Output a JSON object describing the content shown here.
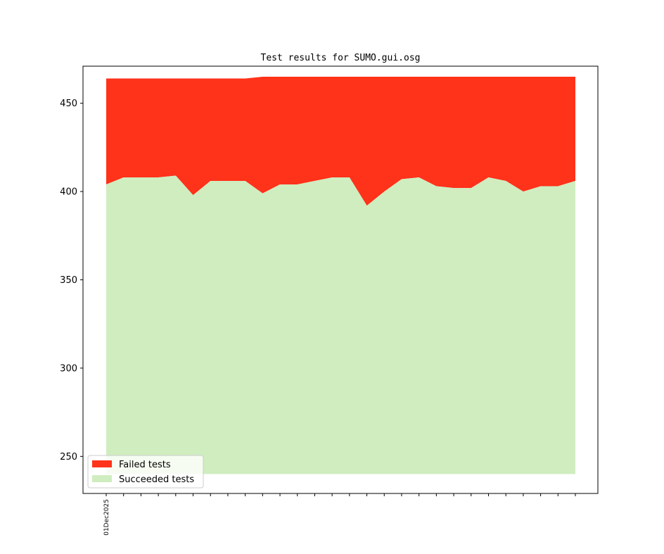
{
  "chart_data": {
    "type": "area",
    "title": "Test results for SUMO.gui.osg",
    "xlabel": "",
    "ylabel": "",
    "ylim": [
      229,
      471
    ],
    "yticks": [
      250,
      300,
      350,
      400,
      450
    ],
    "x": [
      "01Dec2025",
      "02Dec2025",
      "03Dec2025",
      "04Dec2025",
      "05Dec2025",
      "06Dec2025",
      "07Dec2025",
      "08Dec2025",
      "09Dec2025",
      "10Dec2025",
      "11Dec2025",
      "12Dec2025",
      "13Dec2025",
      "14Dec2025",
      "15Dec2025",
      "16Dec2025",
      "17Dec2025",
      "18Dec2025",
      "19Dec2025",
      "20Dec2025",
      "21Dec2025",
      "22Dec2025",
      "23Dec2025",
      "24Dec2025",
      "25Dec2025",
      "26Dec2025",
      "27Dec2025",
      "28Dec2025"
    ],
    "x_tick_labels_shown": [
      "01Dec2025"
    ],
    "baseline": 240,
    "series": [
      {
        "name": "Succeeded tests",
        "color": "#cfedbf",
        "values": [
          404,
          408,
          408,
          408,
          409,
          398,
          406,
          406,
          406,
          399,
          404,
          404,
          406,
          408,
          408,
          392,
          400,
          407,
          408,
          403,
          402,
          402,
          408,
          406,
          400,
          403,
          403,
          406
        ]
      },
      {
        "name": "Failed tests",
        "color": "#ff321a",
        "totals": [
          464,
          464,
          464,
          464,
          464,
          464,
          464,
          464,
          464,
          465,
          465,
          465,
          465,
          465,
          465,
          465,
          465,
          465,
          465,
          465,
          465,
          465,
          465,
          465,
          465,
          465,
          465,
          465
        ]
      }
    ],
    "legend": {
      "placement": "bottom-left",
      "entries": [
        "Failed tests",
        "Succeeded tests"
      ]
    },
    "grid": false
  }
}
